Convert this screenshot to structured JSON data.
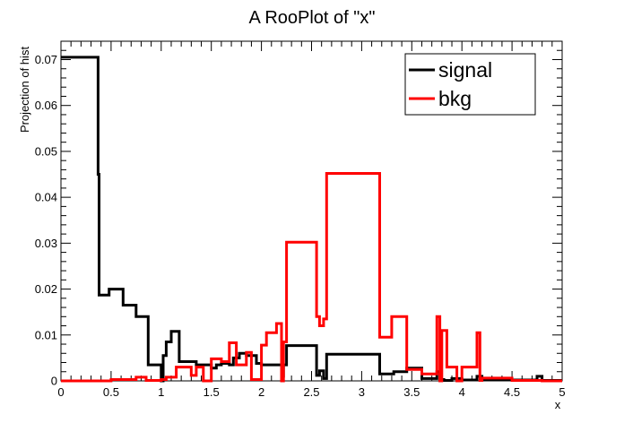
{
  "chart_data": {
    "type": "line",
    "title": "A RooPlot of \"x\"",
    "xlabel": "x",
    "ylabel": "Projection of hist",
    "xlim": [
      0,
      5
    ],
    "ylim": [
      0,
      0.074
    ],
    "grid": false,
    "legend_position": "top-right",
    "x_ticks": [
      {
        "value": 0,
        "label": "0"
      },
      {
        "value": 0.5,
        "label": "0.5"
      },
      {
        "value": 1,
        "label": "1"
      },
      {
        "value": 1.5,
        "label": "1.5"
      },
      {
        "value": 2,
        "label": "2"
      },
      {
        "value": 2.5,
        "label": "2.5"
      },
      {
        "value": 3,
        "label": "3"
      },
      {
        "value": 3.5,
        "label": "3.5"
      },
      {
        "value": 4,
        "label": "4"
      },
      {
        "value": 4.5,
        "label": "4.5"
      },
      {
        "value": 5,
        "label": "5"
      }
    ],
    "y_ticks": [
      {
        "value": 0,
        "label": "0"
      },
      {
        "value": 0.01,
        "label": "0.01"
      },
      {
        "value": 0.02,
        "label": "0.02"
      },
      {
        "value": 0.03,
        "label": "0.03"
      },
      {
        "value": 0.04,
        "label": "0.04"
      },
      {
        "value": 0.05,
        "label": "0.05"
      },
      {
        "value": 0.06,
        "label": "0.06"
      },
      {
        "value": 0.07,
        "label": "0.07"
      }
    ],
    "series": [
      {
        "name": "signal",
        "color": "#000000",
        "x": [
          0,
          0.37,
          0.37,
          0.38,
          0.38,
          0.48,
          0.48,
          0.62,
          0.62,
          0.75,
          0.75,
          0.87,
          0.87,
          1.0,
          1.0,
          1.02,
          1.02,
          1.05,
          1.05,
          1.1,
          1.1,
          1.18,
          1.18,
          1.35,
          1.35,
          1.5,
          1.5,
          1.55,
          1.55,
          1.6,
          1.6,
          1.68,
          1.68,
          1.72,
          1.72,
          1.78,
          1.78,
          1.85,
          1.85,
          1.95,
          1.95,
          2.0,
          2.0,
          2.2,
          2.2,
          2.22,
          2.22,
          2.25,
          2.25,
          2.55,
          2.55,
          2.58,
          2.58,
          2.62,
          2.62,
          2.65,
          2.65,
          3.18,
          3.18,
          3.32,
          3.32,
          3.45,
          3.45,
          3.6,
          3.6,
          3.75,
          3.75,
          3.78,
          3.78,
          3.82,
          3.82,
          3.9,
          3.9,
          4.0,
          4.0,
          4.15,
          4.15,
          4.2,
          4.2,
          4.75,
          4.75,
          4.8,
          4.8,
          5.0
        ],
        "y": [
          0.0705,
          0.0705,
          0.045,
          0.045,
          0.0187,
          0.0187,
          0.02,
          0.02,
          0.0165,
          0.0165,
          0.014,
          0.014,
          0.0035,
          0.0035,
          0.0,
          0.0,
          0.0055,
          0.0055,
          0.0085,
          0.0085,
          0.0108,
          0.0108,
          0.0042,
          0.0042,
          0.0035,
          0.0035,
          0.0028,
          0.0028,
          0.0035,
          0.0035,
          0.0038,
          0.0038,
          0.0035,
          0.0035,
          0.005,
          0.005,
          0.006,
          0.006,
          0.0055,
          0.0055,
          0.0038,
          0.0038,
          0.0035,
          0.0035,
          0.001,
          0.001,
          0.0035,
          0.0035,
          0.0077,
          0.0077,
          0.0012,
          0.0012,
          0.0022,
          0.0022,
          0.0005,
          0.0005,
          0.0058,
          0.0058,
          0.0015,
          0.0015,
          0.002,
          0.002,
          0.0028,
          0.0028,
          0.0005,
          0.0005,
          0.002,
          0.002,
          0.0003,
          0.0003,
          0.0001,
          0.0001,
          0.0005,
          0.0005,
          0.0002,
          0.0002,
          0.001,
          0.001,
          0.0002,
          0.0002,
          0.001,
          0.001,
          0.0001,
          0.0001
        ]
      },
      {
        "name": "bkg",
        "color": "#ff0000",
        "x": [
          0,
          0.5,
          0.5,
          0.75,
          0.75,
          0.85,
          0.85,
          1.0,
          1.0,
          1.05,
          1.05,
          1.15,
          1.15,
          1.3,
          1.3,
          1.35,
          1.35,
          1.42,
          1.42,
          1.5,
          1.5,
          1.6,
          1.6,
          1.68,
          1.68,
          1.75,
          1.75,
          1.85,
          1.85,
          1.9,
          1.9,
          2.0,
          2.0,
          2.05,
          2.05,
          2.15,
          2.15,
          2.2,
          2.2,
          2.22,
          2.22,
          2.25,
          2.25,
          2.55,
          2.55,
          2.58,
          2.58,
          2.62,
          2.62,
          2.65,
          2.65,
          3.18,
          3.18,
          3.3,
          3.3,
          3.45,
          3.45,
          3.6,
          3.6,
          3.75,
          3.75,
          3.78,
          3.78,
          3.8,
          3.8,
          3.85,
          3.85,
          3.95,
          3.95,
          4.0,
          4.0,
          4.15,
          4.15,
          4.18,
          4.18,
          4.2,
          4.2,
          4.5,
          4.5,
          4.8,
          4.8,
          5.0
        ],
        "y": [
          0.0,
          0.0,
          0.0003,
          0.0003,
          0.0008,
          0.0008,
          0.0001,
          0.0001,
          0.0003,
          0.0003,
          0.0008,
          0.0008,
          0.003,
          0.003,
          0.0012,
          0.0012,
          0.003,
          0.003,
          0.0,
          0.0,
          0.0048,
          0.0048,
          0.0042,
          0.0042,
          0.0083,
          0.0083,
          0.0035,
          0.0035,
          0.0062,
          0.0062,
          0.0003,
          0.0003,
          0.0078,
          0.0078,
          0.0105,
          0.0105,
          0.0125,
          0.0125,
          0.0,
          0.0,
          0.0085,
          0.0085,
          0.0302,
          0.0302,
          0.014,
          0.014,
          0.012,
          0.012,
          0.0135,
          0.0135,
          0.0452,
          0.0452,
          0.0095,
          0.0095,
          0.014,
          0.014,
          0.0025,
          0.0025,
          0.0015,
          0.0015,
          0.014,
          0.014,
          0.0,
          0.0,
          0.011,
          0.011,
          0.003,
          0.003,
          0.0,
          0.0,
          0.003,
          0.003,
          0.0105,
          0.0105,
          0.0001,
          0.0001,
          0.0006,
          0.0006,
          0.0001,
          0.0001,
          0.0,
          0.0
        ]
      }
    ]
  }
}
